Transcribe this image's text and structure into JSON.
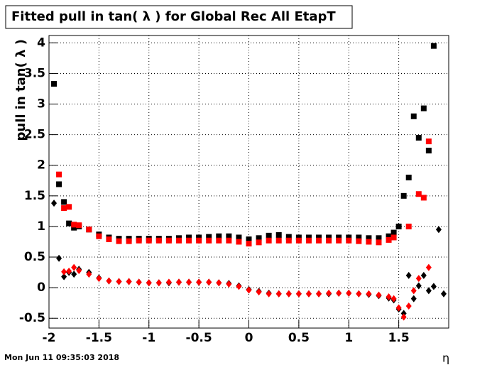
{
  "chart_data": {
    "type": "scatter",
    "title": "Fitted pull in tan( λ ) for Global Rec All EtapT",
    "y_label": "pull in tan( λ )",
    "x_label": "η",
    "footer": "Mon Jun 11 09:35:03 2018",
    "xlim": [
      -2,
      2
    ],
    "ylim": [
      -0.66,
      4.12
    ],
    "xticks": [
      -2,
      -1.5,
      -1,
      -0.5,
      0,
      0.5,
      1,
      1.5
    ],
    "yticks": [
      -0.5,
      0,
      0.5,
      1,
      1.5,
      2,
      2.5,
      3,
      3.5,
      4
    ],
    "grid": true,
    "x": [
      -1.95,
      -1.9,
      -1.85,
      -1.8,
      -1.75,
      -1.7,
      -1.6,
      -1.5,
      -1.4,
      -1.3,
      -1.2,
      -1.1,
      -1,
      -0.9,
      -0.8,
      -0.7,
      -0.6,
      -0.5,
      -0.4,
      -0.3,
      -0.2,
      -0.1,
      0,
      0.1,
      0.2,
      0.3,
      0.4,
      0.5,
      0.6,
      0.7,
      0.8,
      0.9,
      1,
      1.1,
      1.2,
      1.3,
      1.4,
      1.45,
      1.5,
      1.55,
      1.6,
      1.65,
      1.7,
      1.75,
      1.8,
      1.85,
      1.9,
      1.95
    ],
    "series": [
      {
        "color": "#000000",
        "marker": "square",
        "values": [
          3.33,
          1.69,
          1.4,
          1.05,
          0.98,
          1.0,
          0.95,
          0.87,
          0.82,
          0.8,
          0.8,
          0.8,
          0.8,
          0.8,
          0.8,
          0.81,
          0.82,
          0.82,
          0.83,
          0.84,
          0.84,
          0.82,
          0.79,
          0.81,
          0.85,
          0.86,
          0.83,
          0.82,
          0.82,
          0.82,
          0.82,
          0.82,
          0.82,
          0.82,
          0.81,
          0.81,
          0.84,
          0.9,
          1.0,
          1.5,
          1.8,
          2.8,
          2.45,
          2.93,
          2.24,
          3.95,
          null,
          null
        ]
      },
      {
        "color": "#ff0000",
        "marker": "square",
        "values": [
          null,
          1.85,
          1.3,
          1.32,
          1.03,
          1.02,
          0.95,
          0.84,
          0.79,
          0.76,
          0.76,
          0.77,
          0.77,
          0.77,
          0.77,
          0.77,
          0.77,
          0.77,
          0.77,
          0.77,
          0.77,
          0.75,
          0.72,
          0.74,
          0.77,
          0.77,
          0.77,
          0.77,
          0.77,
          0.77,
          0.77,
          0.77,
          0.77,
          0.76,
          0.75,
          0.74,
          0.78,
          0.82,
          null,
          null,
          1.0,
          null,
          1.53,
          1.47,
          2.39,
          null,
          null,
          null
        ]
      },
      {
        "color": "#000000",
        "marker": "diamond",
        "values": [
          1.38,
          0.48,
          0.18,
          0.25,
          0.22,
          0.3,
          0.25,
          0.16,
          0.11,
          0.1,
          0.1,
          0.09,
          0.08,
          0.08,
          0.08,
          0.09,
          0.09,
          0.09,
          0.09,
          0.08,
          0.07,
          0.03,
          -0.03,
          -0.06,
          -0.09,
          -0.1,
          -0.1,
          -0.1,
          -0.1,
          -0.1,
          -0.1,
          -0.09,
          -0.09,
          -0.1,
          -0.11,
          -0.13,
          -0.17,
          -0.2,
          -0.35,
          -0.42,
          0.2,
          -0.18,
          0.03,
          0.2,
          -0.05,
          0.02,
          0.95,
          -0.1
        ]
      },
      {
        "color": "#ff0000",
        "marker": "diamond",
        "values": [
          null,
          null,
          0.26,
          0.27,
          0.33,
          0.28,
          0.22,
          0.15,
          0.11,
          0.1,
          0.1,
          0.09,
          0.08,
          0.08,
          0.09,
          0.09,
          0.09,
          0.09,
          0.09,
          0.08,
          0.06,
          0.02,
          -0.04,
          -0.07,
          -0.1,
          -0.1,
          -0.1,
          -0.1,
          -0.1,
          -0.1,
          -0.09,
          -0.09,
          -0.09,
          -0.1,
          -0.1,
          -0.12,
          -0.15,
          -0.18,
          -0.33,
          -0.48,
          -0.3,
          -0.05,
          0.15,
          null,
          0.33,
          null,
          null,
          null
        ]
      }
    ]
  }
}
